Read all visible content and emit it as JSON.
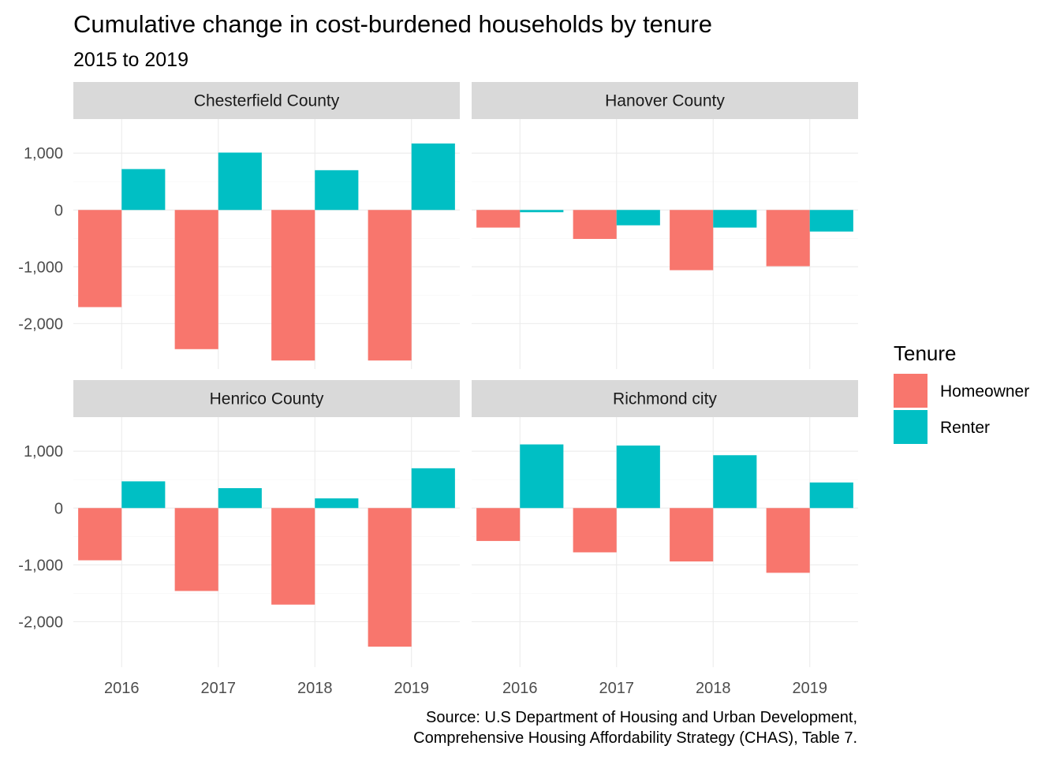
{
  "title": "Cumulative change in cost-burdened households by tenure",
  "subtitle": "2015 to 2019",
  "caption": {
    "line1": "Source: U.S Department of Housing and Urban Development,",
    "line2": "Comprehensive Housing Affordability Strategy (CHAS), Table 7."
  },
  "legend": {
    "title": "Tenure",
    "position": "right"
  },
  "colors": {
    "Homeowner": "#F8766D",
    "Renter": "#00BFC4"
  },
  "chart_data": {
    "type": "bar",
    "layout": "facet_wrap 2x2, shared axes",
    "categories": [
      "2016",
      "2017",
      "2018",
      "2019"
    ],
    "series_names": [
      "Homeowner",
      "Renter"
    ],
    "y_ticks": [
      1000,
      0,
      -1000,
      -2000
    ],
    "y_tick_labels": [
      "1,000",
      "0",
      "-1,000",
      "-2,000"
    ],
    "ylim": [
      -2800,
      1600
    ],
    "grid": true,
    "facets": [
      {
        "label": "Chesterfield County",
        "series": [
          {
            "name": "Homeowner",
            "values": [
              -1710,
              -2450,
              -2650,
              -2650
            ]
          },
          {
            "name": "Renter",
            "values": [
              720,
              1010,
              700,
              1170
            ]
          }
        ]
      },
      {
        "label": "Hanover County",
        "series": [
          {
            "name": "Homeowner",
            "values": [
              -310,
              -510,
              -1060,
              -990
            ]
          },
          {
            "name": "Renter",
            "values": [
              -40,
              -270,
              -310,
              -380
            ]
          }
        ]
      },
      {
        "label": "Henrico County",
        "series": [
          {
            "name": "Homeowner",
            "values": [
              -920,
              -1460,
              -1700,
              -2440
            ]
          },
          {
            "name": "Renter",
            "values": [
              470,
              350,
              170,
              700
            ]
          }
        ]
      },
      {
        "label": "Richmond city",
        "series": [
          {
            "name": "Homeowner",
            "values": [
              -580,
              -780,
              -940,
              -1140
            ]
          },
          {
            "name": "Renter",
            "values": [
              1120,
              1100,
              930,
              450
            ]
          }
        ]
      }
    ]
  }
}
